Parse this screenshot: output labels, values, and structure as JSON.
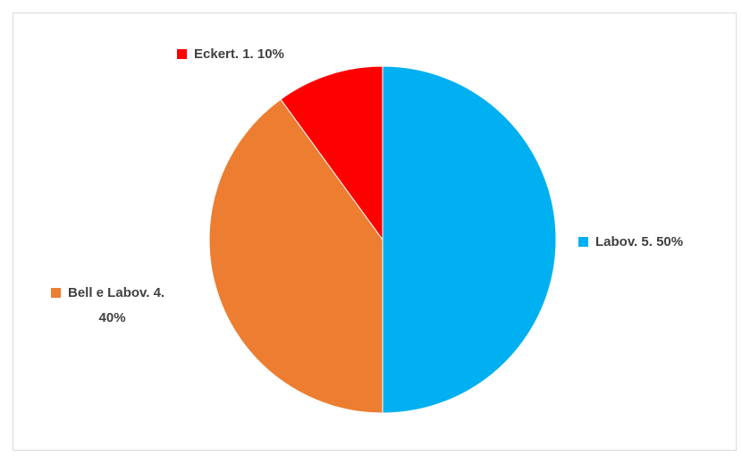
{
  "chart_data": {
    "type": "pie",
    "title": "",
    "slices": [
      {
        "label": "Labov",
        "value": 5,
        "percent": "50%",
        "color": "#00B0F0",
        "text": "Labov. 5. 50%"
      },
      {
        "label": "Bell e Labov",
        "value": 4,
        "percent": "40%",
        "color": "#ED7D31",
        "text_line1": "Bell e Labov. 4.",
        "text_line2": "40%"
      },
      {
        "label": "Eckert",
        "value": 1,
        "percent": "10%",
        "color": "#FF0000",
        "text": "Eckert. 1. 10%"
      }
    ],
    "legend": "none"
  }
}
